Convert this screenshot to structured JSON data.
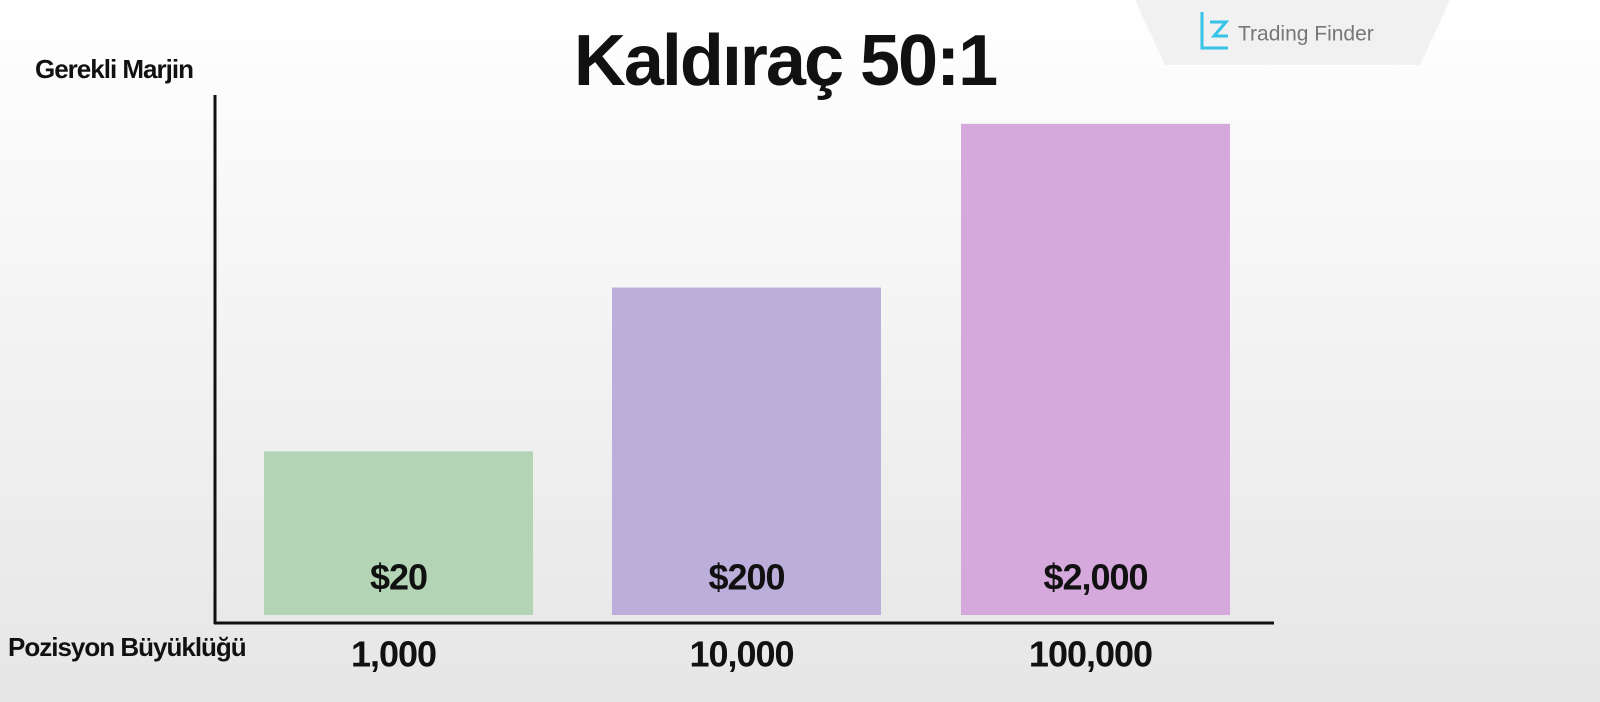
{
  "chart_data": {
    "type": "bar",
    "title": "Kaldıraç 50:1",
    "y_label": "Gerekli Marjin",
    "x_label": "Pozisyon Büyüklüğü",
    "categories": [
      "1,000",
      "10,000",
      "100,000"
    ],
    "values": [
      20,
      200,
      2000
    ],
    "value_labels": [
      "$20",
      "$200",
      "$2,000"
    ],
    "colors": [
      "#b3d4b5",
      "#bbaedb",
      "#d5a9db"
    ],
    "log_scale": true,
    "ylim": [
      2,
      3000
    ],
    "watermark": "Trading Finder"
  }
}
